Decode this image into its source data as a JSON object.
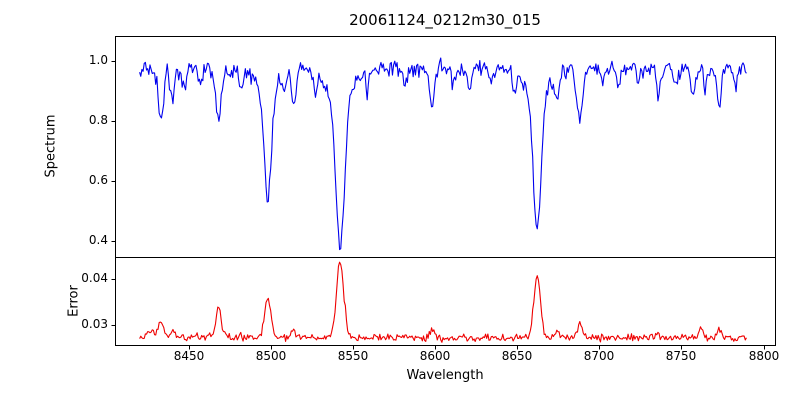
{
  "chart_data": {
    "type": "line",
    "title": "20061124_0212m30_015",
    "xlabel": "Wavelength",
    "background": "#ffffff",
    "frame_color": "#000000",
    "grid": false,
    "legend": "none",
    "xlim": [
      8405,
      8807
    ],
    "x_start": 8420,
    "x_end": 8790,
    "sample_step": 0.7,
    "seed": 11,
    "xticks": [
      8450,
      8500,
      8550,
      8600,
      8650,
      8700,
      8750,
      8800
    ],
    "xtick_labels": [
      "8450",
      "8500",
      "8550",
      "8600",
      "8650",
      "8700",
      "8750",
      "8800"
    ],
    "panels": [
      {
        "name": "spectrum",
        "ylabel": "Spectrum",
        "color": "#0000ee",
        "ylim": [
          0.345,
          1.085
        ],
        "yticks": [
          0.4,
          0.6,
          0.8,
          1.0
        ],
        "ytick_labels": [
          "0.4",
          "0.6",
          "0.8",
          "1.0"
        ],
        "continuum": 0.985,
        "noise_sigma": 0.012,
        "noise_skew": 0.009,
        "absorption_lines": [
          {
            "center": 8433,
            "depth": 0.17,
            "width": 1.6
          },
          {
            "center": 8440,
            "depth": 0.1,
            "width": 1.4
          },
          {
            "center": 8447,
            "depth": 0.07,
            "width": 1.2
          },
          {
            "center": 8457,
            "depth": 0.06,
            "width": 1.2
          },
          {
            "center": 8468,
            "depth": 0.16,
            "width": 1.8
          },
          {
            "center": 8475,
            "depth": 0.05,
            "width": 1.1
          },
          {
            "center": 8482,
            "depth": 0.07,
            "width": 1.2
          },
          {
            "center": 8498.02,
            "depth": 0.36,
            "width": 2.2,
            "wing_depth": 0.075,
            "wing_width": 6
          },
          {
            "center": 8508,
            "depth": 0.06,
            "width": 1.2
          },
          {
            "center": 8514,
            "depth": 0.12,
            "width": 1.5
          },
          {
            "center": 8527,
            "depth": 0.07,
            "width": 1.2
          },
          {
            "center": 8542.09,
            "depth": 0.5,
            "width": 2.6,
            "wing_depth": 0.1,
            "wing_width": 8
          },
          {
            "center": 8559,
            "depth": 0.05,
            "width": 1.2
          },
          {
            "center": 8582,
            "depth": 0.07,
            "width": 1.3
          },
          {
            "center": 8598,
            "depth": 0.13,
            "width": 1.5
          },
          {
            "center": 8611,
            "depth": 0.06,
            "width": 1.2
          },
          {
            "center": 8621,
            "depth": 0.07,
            "width": 1.2
          },
          {
            "center": 8634,
            "depth": 0.05,
            "width": 1.1
          },
          {
            "center": 8648,
            "depth": 0.07,
            "width": 1.2
          },
          {
            "center": 8662.14,
            "depth": 0.44,
            "width": 2.4,
            "wing_depth": 0.095,
            "wing_width": 7
          },
          {
            "center": 8674,
            "depth": 0.1,
            "width": 1.3
          },
          {
            "center": 8688,
            "depth": 0.18,
            "width": 1.7
          },
          {
            "center": 8702,
            "depth": 0.05,
            "width": 1.1
          },
          {
            "center": 8712,
            "depth": 0.06,
            "width": 1.2
          },
          {
            "center": 8724,
            "depth": 0.05,
            "width": 1.1
          },
          {
            "center": 8736,
            "depth": 0.09,
            "width": 1.3
          },
          {
            "center": 8747,
            "depth": 0.05,
            "width": 1.1
          },
          {
            "center": 8757,
            "depth": 0.08,
            "width": 1.2
          },
          {
            "center": 8765,
            "depth": 0.06,
            "width": 1.2
          },
          {
            "center": 8773,
            "depth": 0.12,
            "width": 1.4
          },
          {
            "center": 8783,
            "depth": 0.06,
            "width": 1.2
          }
        ]
      },
      {
        "name": "error",
        "ylabel": "Error",
        "color": "#ee0000",
        "ylim": [
          0.0256,
          0.0449
        ],
        "yticks": [
          0.03,
          0.04
        ],
        "ytick_labels": [
          "0.03",
          "0.04"
        ],
        "baseline": 0.0272,
        "noise_sigma": 0.0004,
        "peaks": [
          {
            "center": 8427,
            "height": 0.0012,
            "width": 2.5
          },
          {
            "center": 8433,
            "height": 0.0035,
            "width": 1.6
          },
          {
            "center": 8440,
            "height": 0.0015,
            "width": 1.4
          },
          {
            "center": 8468,
            "height": 0.006,
            "width": 1.8
          },
          {
            "center": 8498.02,
            "height": 0.0085,
            "width": 2.0
          },
          {
            "center": 8514,
            "height": 0.0016,
            "width": 1.5
          },
          {
            "center": 8542.09,
            "height": 0.0165,
            "width": 2.2
          },
          {
            "center": 8598,
            "height": 0.0018,
            "width": 1.5
          },
          {
            "center": 8662.14,
            "height": 0.0135,
            "width": 2.0
          },
          {
            "center": 8674,
            "height": 0.0014,
            "width": 1.3
          },
          {
            "center": 8688,
            "height": 0.0028,
            "width": 1.6
          },
          {
            "center": 8736,
            "height": 0.0012,
            "width": 1.3
          },
          {
            "center": 8762,
            "height": 0.0022,
            "width": 1.4
          },
          {
            "center": 8773,
            "height": 0.002,
            "width": 1.4
          }
        ]
      }
    ]
  }
}
